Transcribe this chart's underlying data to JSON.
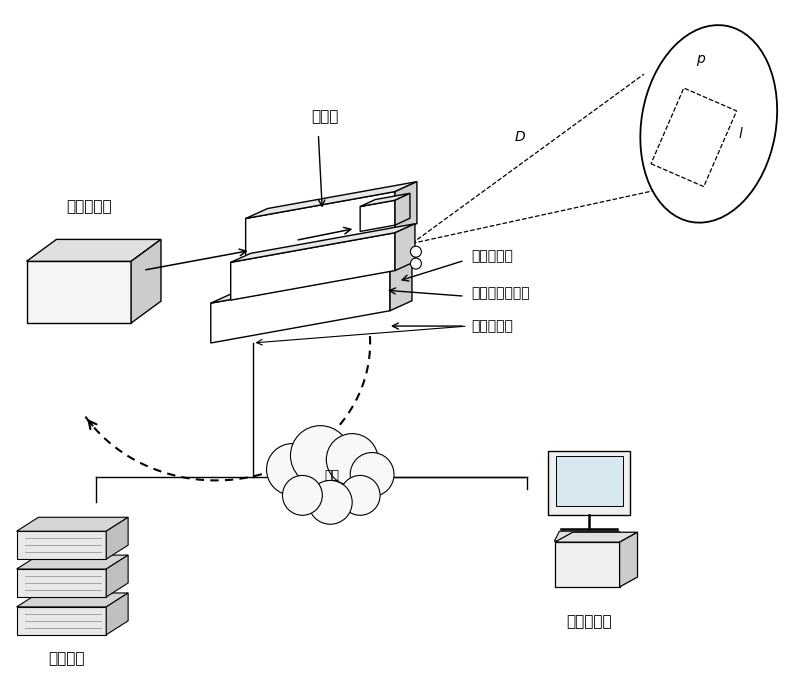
{
  "background_color": "#ffffff",
  "text_color": "#000000",
  "labels": {
    "camera": "摄像机",
    "codec": "编解码模块",
    "angle_sensor": "角度传感器",
    "laser_sensor": "激光测距传感器",
    "platform": "高精度云台",
    "network": "网络",
    "center": "中心平台",
    "client": "测距客户端",
    "D": "D",
    "p": "p",
    "l": "l"
  },
  "figsize": [
    8.0,
    6.78
  ],
  "dpi": 100
}
